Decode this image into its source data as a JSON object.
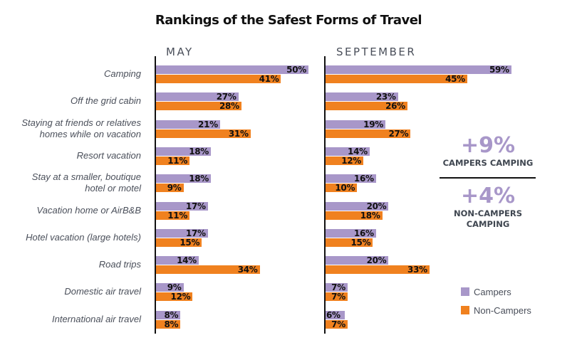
{
  "chart_data": {
    "type": "bar",
    "orientation": "horizontal",
    "title": "Rankings of the Safest Forms of Travel",
    "categories": [
      "Camping",
      "Off the grid cabin",
      "Staying at friends or relatives homes while on vacation",
      "Resort vacation",
      "Stay at a smaller, boutique hotel or motel",
      "Vacation home or AirB&B",
      "Hotel vacation (large hotels)",
      "Road trips",
      "Domestic air travel",
      "International air travel"
    ],
    "category_lines": [
      [
        "Camping"
      ],
      [
        "Off the grid cabin"
      ],
      [
        "Staying at friends or relatives",
        "homes while on vacation"
      ],
      [
        "Resort vacation"
      ],
      [
        "Stay at a smaller, boutique",
        "hotel or motel"
      ],
      [
        "Vacation home or AirB&B"
      ],
      [
        "Hotel vacation (large hotels)"
      ],
      [
        "Road trips"
      ],
      [
        "Domestic air travel"
      ],
      [
        "International air travel"
      ]
    ],
    "panels": [
      {
        "name": "MAY",
        "series": [
          {
            "name": "Campers",
            "values": [
              50,
              27,
              21,
              18,
              18,
              17,
              17,
              14,
              9,
              8
            ]
          },
          {
            "name": "Non-Campers",
            "values": [
              41,
              28,
              31,
              11,
              9,
              11,
              15,
              34,
              12,
              8
            ]
          }
        ]
      },
      {
        "name": "SEPTEMBER",
        "series": [
          {
            "name": "Campers",
            "values": [
              59,
              23,
              19,
              14,
              16,
              20,
              16,
              20,
              7,
              6
            ]
          },
          {
            "name": "Non-Campers",
            "values": [
              45,
              26,
              27,
              12,
              10,
              18,
              15,
              33,
              7,
              7
            ]
          }
        ]
      }
    ],
    "value_suffix": "%",
    "legend": {
      "position": "bottom-right",
      "entries": [
        {
          "label": "Campers",
          "color": "#a897c9"
        },
        {
          "label": "Non-Campers",
          "color": "#f0811f"
        }
      ]
    },
    "annotations": [
      {
        "value": "+9%",
        "label": "CAMPERS CAMPING"
      },
      {
        "value": "+4%",
        "label": "NON-CAMPERS CAMPING",
        "label_lines": [
          "NON-CAMPERS",
          "CAMPING"
        ]
      }
    ],
    "grid": false
  }
}
